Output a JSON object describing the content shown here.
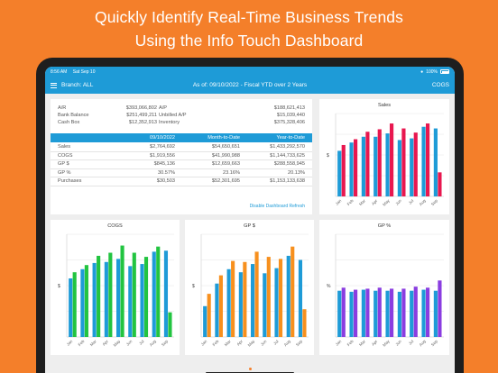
{
  "headline": {
    "line1": "Quickly Identify Real-Time Business Trends",
    "line2": "Using the Info Touch Dashboard"
  },
  "status_bar": {
    "time": "8:56 AM",
    "date": "Sat Sep 10",
    "battery": "100%"
  },
  "nav": {
    "branch": "Branch: ALL",
    "title": "As of: 09/10/2022 - Fiscal YTD over 2 Years",
    "right_label": "COGS"
  },
  "summary": {
    "rows": [
      {
        "label1": "A/R",
        "value1": "$393,066,802",
        "label2": "A/P",
        "value2": "$188,621,413"
      },
      {
        "label1": "Bank Balance",
        "value1": "$251,499,211",
        "label2": "Unbilled A/P",
        "value2": "$15,039,440"
      },
      {
        "label1": "Cash Box",
        "value1": "$12,352,913",
        "label2": "Inventory",
        "value2": "$375,328,406"
      }
    ],
    "table": {
      "headers": [
        "",
        "09/10/2022",
        "Month-to-Date",
        "Year-to-Date"
      ],
      "rows": [
        [
          "Sales",
          "$2,764,692",
          "$54,650,651",
          "$1,433,292,570"
        ],
        [
          "COGS",
          "$1,919,556",
          "$41,990,988",
          "$1,144,733,625"
        ],
        [
          "GP $",
          "$845,136",
          "$12,659,663",
          "$288,558,945"
        ],
        [
          "GP %",
          "30.57%",
          "23.16%",
          "20.13%"
        ],
        [
          "Purchases",
          "$30,503",
          "$52,301,695",
          "$1,153,133,638"
        ]
      ]
    },
    "refresh_label": "Disable Dashboard Refresh"
  },
  "colors": {
    "accent": "#1e9bd7",
    "background": "#f47f2a",
    "series_prev": "#1e9bd7",
    "sales_current": "#e8174f",
    "cogs_current": "#22c440",
    "gp_current": "#f7901e",
    "gppct_current": "#8a3de0"
  },
  "chart_data": [
    {
      "type": "bar",
      "title": "Sales",
      "ylabel": "$",
      "categories": [
        "Jan",
        "Feb",
        "Mar",
        "Apr",
        "May",
        "Jun",
        "Jul",
        "Aug",
        "Sep"
      ],
      "ylim": [
        0,
        100
      ],
      "series": [
        {
          "values": [
            55,
            65,
            72,
            72,
            76,
            68,
            70,
            84,
            82
          ]
        },
        {
          "values": [
            62,
            69,
            78,
            81,
            88,
            82,
            77,
            88,
            29
          ]
        }
      ]
    },
    {
      "type": "bar",
      "title": "COGS",
      "ylabel": "$",
      "categories": [
        "Jan",
        "Feb",
        "Mar",
        "Apr",
        "May",
        "Jun",
        "Jul",
        "Aug",
        "Sep"
      ],
      "ylim": [
        0,
        100
      ],
      "series": [
        {
          "values": [
            57,
            66,
            72,
            73,
            76,
            69,
            71,
            83,
            84
          ]
        },
        {
          "values": [
            63,
            70,
            79,
            82,
            89,
            82,
            78,
            88,
            24
          ]
        }
      ]
    },
    {
      "type": "bar",
      "title": "GP $",
      "ylabel": "$",
      "categories": [
        "Jan",
        "Feb",
        "Mar",
        "Apr",
        "May",
        "Jun",
        "Jul",
        "Aug",
        "Sep"
      ],
      "ylim": [
        0,
        100
      ],
      "series": [
        {
          "values": [
            30,
            52,
            66,
            63,
            71,
            62,
            67,
            79,
            75
          ]
        },
        {
          "values": [
            42,
            60,
            74,
            73,
            83,
            78,
            76,
            88,
            27
          ]
        }
      ]
    },
    {
      "type": "bar",
      "title": "GP %",
      "ylabel": "%",
      "categories": [
        "Jan",
        "Feb",
        "Mar",
        "Apr",
        "May",
        "Jun",
        "Jul",
        "Aug",
        "Sep"
      ],
      "ylim": [
        0,
        100
      ],
      "series": [
        {
          "values": [
            45,
            44,
            46,
            45,
            45,
            44,
            45,
            46,
            45
          ]
        },
        {
          "values": [
            48,
            46,
            47,
            48,
            47,
            47,
            49,
            48,
            55
          ]
        }
      ]
    }
  ]
}
